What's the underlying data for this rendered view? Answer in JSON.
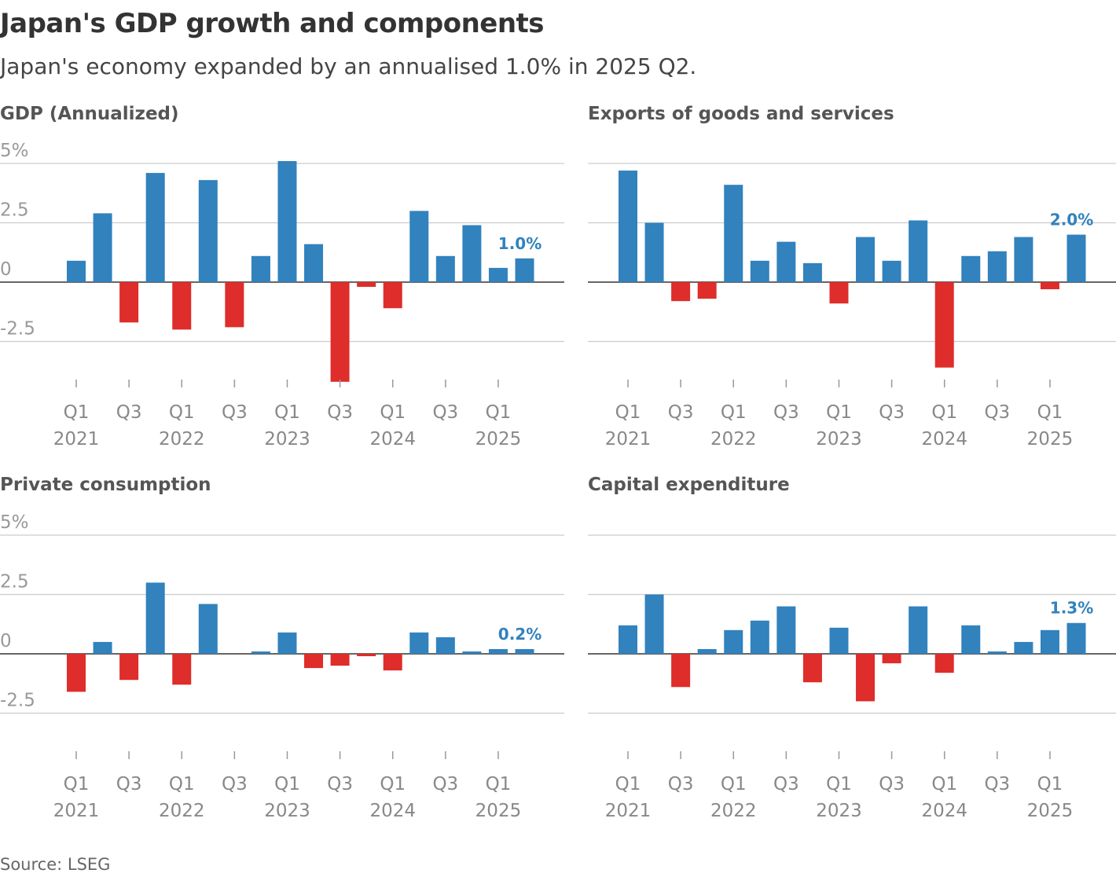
{
  "title": "Japan's GDP growth and components",
  "subtitle": "Japan's economy expanded by an annualised 1.0% in 2025 Q2.",
  "source": "Source: LSEG",
  "colors": {
    "positive": "#3182bd",
    "negative": "#de2d2a",
    "grid": "#cccccc",
    "zero": "#333333",
    "axis_text": "#888888"
  },
  "chart_data": [
    {
      "type": "bar",
      "title": "GDP (Annualized)",
      "categories": [
        "2021 Q1",
        "2021 Q2",
        "2021 Q3",
        "2021 Q4",
        "2022 Q1",
        "2022 Q2",
        "2022 Q3",
        "2022 Q4",
        "2023 Q1",
        "2023 Q2",
        "2023 Q3",
        "2023 Q4",
        "2024 Q1",
        "2024 Q2",
        "2024 Q3",
        "2024 Q4",
        "2025 Q1",
        "2025 Q2"
      ],
      "values": [
        0.9,
        2.9,
        -1.7,
        4.6,
        -2.0,
        4.3,
        -1.9,
        1.1,
        5.1,
        1.6,
        -4.2,
        -0.2,
        -1.1,
        3.0,
        1.1,
        2.4,
        0.6,
        1.0
      ],
      "annotation": "1.0%",
      "yticks": [
        "5%",
        "2.5",
        "0",
        "-2.5"
      ],
      "ylim": [
        -4.5,
        5.5
      ]
    },
    {
      "type": "bar",
      "title": "Exports of goods and services",
      "categories": [
        "2021 Q1",
        "2021 Q2",
        "2021 Q3",
        "2021 Q4",
        "2022 Q1",
        "2022 Q2",
        "2022 Q3",
        "2022 Q4",
        "2023 Q1",
        "2023 Q2",
        "2023 Q3",
        "2023 Q4",
        "2024 Q1",
        "2024 Q2",
        "2024 Q3",
        "2024 Q4",
        "2025 Q1",
        "2025 Q2"
      ],
      "values": [
        4.7,
        2.5,
        -0.8,
        -0.7,
        4.1,
        0.9,
        1.7,
        0.8,
        -0.9,
        1.9,
        0.9,
        2.6,
        -3.6,
        1.1,
        1.3,
        1.9,
        -0.3,
        2.0
      ],
      "annotation": "2.0%",
      "ylim": [
        -4.5,
        5.5
      ]
    },
    {
      "type": "bar",
      "title": "Private consumption",
      "categories": [
        "2021 Q1",
        "2021 Q2",
        "2021 Q3",
        "2021 Q4",
        "2022 Q1",
        "2022 Q2",
        "2022 Q3",
        "2022 Q4",
        "2023 Q1",
        "2023 Q2",
        "2023 Q3",
        "2023 Q4",
        "2024 Q1",
        "2024 Q2",
        "2024 Q3",
        "2024 Q4",
        "2025 Q1",
        "2025 Q2"
      ],
      "values": [
        -1.6,
        0.5,
        -1.1,
        3.0,
        -1.3,
        2.1,
        0.0,
        0.1,
        0.9,
        -0.6,
        -0.5,
        -0.1,
        -0.7,
        0.9,
        0.7,
        0.1,
        0.2,
        0.2
      ],
      "annotation": "0.2%",
      "yticks": [
        "5%",
        "2.5",
        "0",
        "-2.5"
      ],
      "ylim": [
        -4.5,
        5.5
      ]
    },
    {
      "type": "bar",
      "title": "Capital expenditure",
      "categories": [
        "2021 Q1",
        "2021 Q2",
        "2021 Q3",
        "2021 Q4",
        "2022 Q1",
        "2022 Q2",
        "2022 Q3",
        "2022 Q4",
        "2023 Q1",
        "2023 Q2",
        "2023 Q3",
        "2023 Q4",
        "2024 Q1",
        "2024 Q2",
        "2024 Q3",
        "2024 Q4",
        "2025 Q1",
        "2025 Q2"
      ],
      "values": [
        1.2,
        2.5,
        -1.4,
        0.2,
        1.0,
        1.4,
        2.0,
        -1.2,
        1.1,
        -2.0,
        -0.4,
        2.0,
        -0.8,
        1.2,
        0.1,
        0.5,
        1.0,
        1.3
      ],
      "annotation": "1.3%",
      "ylim": [
        -4.5,
        5.5
      ]
    }
  ],
  "xaxis": {
    "quarter_labels": [
      "Q1",
      "Q3",
      "Q1",
      "Q3",
      "Q1",
      "Q3",
      "Q1",
      "Q3",
      "Q1"
    ],
    "year_labels": [
      "2021",
      "2022",
      "2023",
      "2024",
      "2025"
    ]
  }
}
